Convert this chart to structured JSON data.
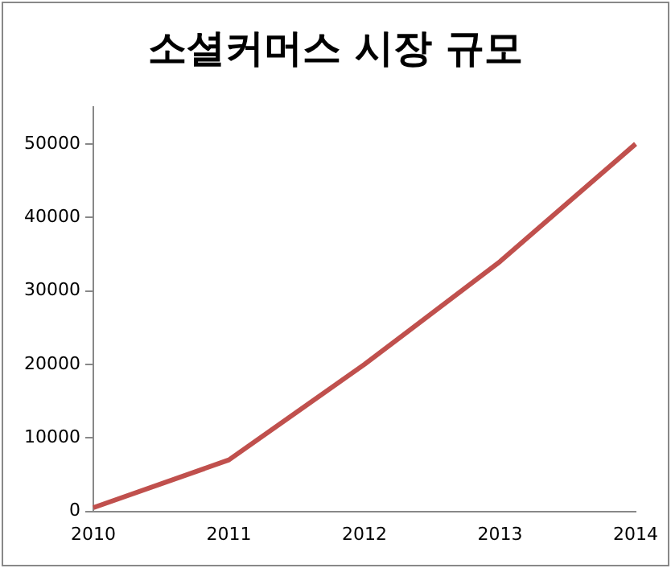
{
  "chart_data": {
    "type": "line",
    "title": "소셜커머스 시장 규모",
    "categories": [
      "2010",
      "2011",
      "2012",
      "2013",
      "2014"
    ],
    "series": [
      {
        "color": "#c0504d",
        "values": [
          500,
          7000,
          20000,
          34000,
          50000
        ]
      }
    ],
    "ylim": [
      0,
      55000
    ],
    "yticks": [
      0,
      10000,
      20000,
      30000,
      40000,
      50000
    ],
    "grid": false,
    "legend": false,
    "marker": "none",
    "line_style": "solid"
  }
}
